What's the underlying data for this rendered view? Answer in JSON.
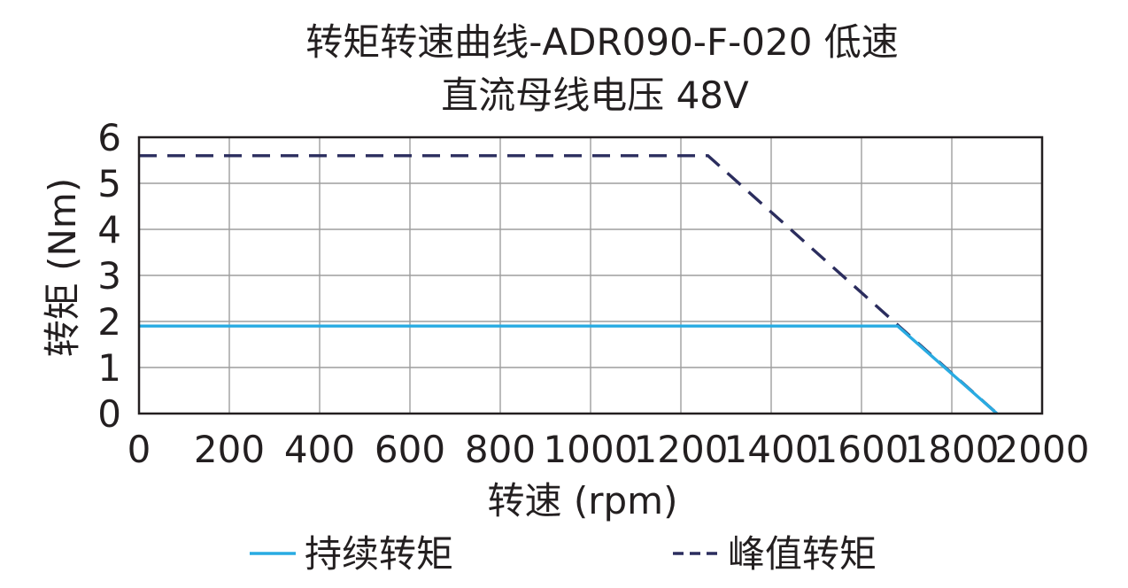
{
  "chart_data": {
    "type": "line",
    "title_lines": [
      "转矩转速曲线-ADR090-F-020 低速",
      "直流母线电压 48V"
    ],
    "xlabel": "转速 (rpm)",
    "ylabel": "转矩 (Nm)",
    "xlim": [
      0,
      2000
    ],
    "ylim": [
      0,
      6
    ],
    "xticks": [
      0,
      200,
      400,
      600,
      800,
      1000,
      1200,
      1400,
      1600,
      1800,
      2000
    ],
    "yticks": [
      0,
      1,
      2,
      3,
      4,
      5,
      6
    ],
    "grid": true,
    "legend_position": "bottom",
    "series": [
      {
        "name": "持续转矩",
        "color": "#29abe2",
        "dash": "solid",
        "points": [
          [
            0,
            1.9
          ],
          [
            1680,
            1.9
          ],
          [
            1900,
            0
          ]
        ]
      },
      {
        "name": "峰值转矩",
        "color": "#2b2d5e",
        "dash": "dashed",
        "points": [
          [
            0,
            5.6
          ],
          [
            1260,
            5.6
          ],
          [
            1900,
            0
          ]
        ]
      }
    ]
  }
}
